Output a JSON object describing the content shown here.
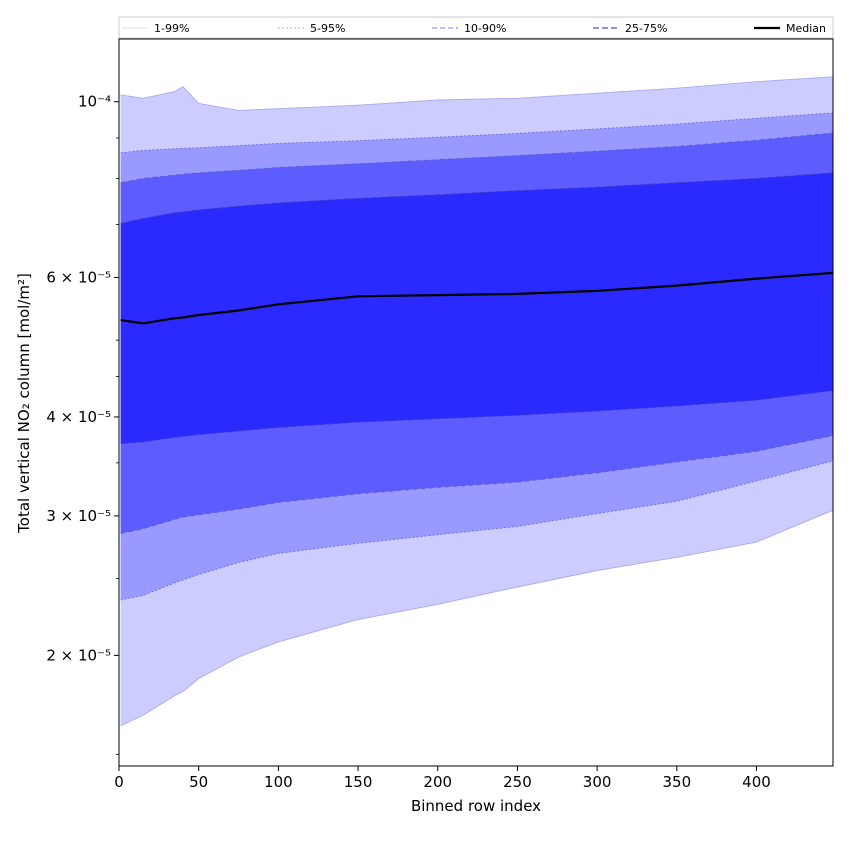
{
  "chart_data": {
    "type": "area",
    "title": "",
    "xlabel": "Binned row index",
    "ylabel": "Total vertical NO₂ column [mol/m²]",
    "yscale": "log",
    "xlim": [
      0,
      448
    ],
    "ylim": [
      1.45e-05,
      0.00012
    ],
    "grid": false,
    "legend_position": "top",
    "x_ticks": [
      {
        "value": 0,
        "label": "0"
      },
      {
        "value": 50,
        "label": "50"
      },
      {
        "value": 100,
        "label": "100"
      },
      {
        "value": 150,
        "label": "150"
      },
      {
        "value": 200,
        "label": "200"
      },
      {
        "value": 250,
        "label": "250"
      },
      {
        "value": 300,
        "label": "300"
      },
      {
        "value": 350,
        "label": "350"
      },
      {
        "value": 400,
        "label": "400"
      }
    ],
    "y_ticks": [
      {
        "value": 2e-05,
        "label": "2 × 10⁻⁵"
      },
      {
        "value": 3e-05,
        "label": "3 × 10⁻⁵"
      },
      {
        "value": 4e-05,
        "label": "4 × 10⁻⁵"
      },
      {
        "value": 6e-05,
        "label": "6 × 10⁻⁵"
      },
      {
        "value": 0.0001,
        "label": "10⁻⁴"
      }
    ],
    "x": [
      1,
      15,
      35,
      40,
      50,
      75,
      100,
      150,
      200,
      250,
      300,
      350,
      400,
      448
    ],
    "series": [
      {
        "name": "p1",
        "band": "1-99%",
        "values": [
          1.63e-05,
          1.68e-05,
          1.78e-05,
          1.8e-05,
          1.87e-05,
          1.99e-05,
          2.08e-05,
          2.22e-05,
          2.32e-05,
          2.44e-05,
          2.56e-05,
          2.66e-05,
          2.78e-05,
          3.05e-05
        ]
      },
      {
        "name": "p5",
        "band": "5-95%",
        "values": [
          2.35e-05,
          2.38e-05,
          2.47e-05,
          2.49e-05,
          2.53e-05,
          2.62e-05,
          2.69e-05,
          2.77e-05,
          2.84e-05,
          2.91e-05,
          3.02e-05,
          3.13e-05,
          3.32e-05,
          3.52e-05
        ]
      },
      {
        "name": "p10",
        "band": "10-90%",
        "values": [
          2.85e-05,
          2.89e-05,
          2.97e-05,
          2.99e-05,
          3.01e-05,
          3.06e-05,
          3.12e-05,
          3.2e-05,
          3.26e-05,
          3.31e-05,
          3.4e-05,
          3.51e-05,
          3.62e-05,
          3.79e-05
        ]
      },
      {
        "name": "p25",
        "band": "25-75%",
        "values": [
          3.7e-05,
          3.72e-05,
          3.77e-05,
          3.78e-05,
          3.8e-05,
          3.84e-05,
          3.88e-05,
          3.94e-05,
          3.98e-05,
          4.02e-05,
          4.07e-05,
          4.13e-05,
          4.2e-05,
          4.32e-05
        ]
      },
      {
        "name": "median",
        "band": "Median",
        "values": [
          5.3e-05,
          5.25e-05,
          5.33e-05,
          5.34e-05,
          5.38e-05,
          5.45e-05,
          5.55e-05,
          5.68e-05,
          5.7e-05,
          5.72e-05,
          5.77e-05,
          5.86e-05,
          5.98e-05,
          6.08e-05
        ]
      },
      {
        "name": "p75",
        "band": "25-75%",
        "values": [
          7.02e-05,
          7.12e-05,
          7.24e-05,
          7.26e-05,
          7.3e-05,
          7.38e-05,
          7.45e-05,
          7.55e-05,
          7.63e-05,
          7.72e-05,
          7.8e-05,
          7.9e-05,
          8e-05,
          8.13e-05
        ]
      },
      {
        "name": "p90",
        "band": "10-90%",
        "values": [
          7.9e-05,
          8e-05,
          8.08e-05,
          8.1e-05,
          8.13e-05,
          8.19e-05,
          8.26e-05,
          8.35e-05,
          8.45e-05,
          8.55e-05,
          8.66e-05,
          8.78e-05,
          8.94e-05,
          9.13e-05
        ]
      },
      {
        "name": "p95",
        "band": "5-95%",
        "values": [
          8.62e-05,
          8.68e-05,
          8.72e-05,
          8.73e-05,
          8.75e-05,
          8.8e-05,
          8.86e-05,
          8.93e-05,
          9.02e-05,
          9.12e-05,
          9.24e-05,
          9.37e-05,
          9.53e-05,
          9.68e-05
        ]
      },
      {
        "name": "p99",
        "band": "1-99%",
        "values": [
          0.000102,
          0.000101,
          0.000103,
          0.0001045,
          9.95e-05,
          9.75e-05,
          9.8e-05,
          9.9e-05,
          0.0001005,
          0.000101,
          0.0001025,
          0.000104,
          0.000106,
          0.0001075
        ]
      }
    ],
    "bands": [
      {
        "label": "1-99%",
        "lower": "p1",
        "upper": "p99",
        "fill": "#ccccff",
        "edge": "#aaaaee",
        "dash": ""
      },
      {
        "label": "5-95%",
        "lower": "p5",
        "upper": "p95",
        "fill": "#9999ff",
        "edge": "#6b6bd6",
        "dash": "2,2"
      },
      {
        "label": "10-90%",
        "lower": "p10",
        "upper": "p90",
        "fill": "#5c5cff",
        "edge": "#5b5bd0",
        "dash": "5,3"
      },
      {
        "label": "25-75%",
        "lower": "p25",
        "upper": "p75",
        "fill": "#2a2aff",
        "edge": "#3b3bc8",
        "dash": "6,3"
      }
    ],
    "legend": [
      "1-99%",
      "5-95%",
      "10-90%",
      "25-75%",
      "Median"
    ],
    "colors": {
      "median": "#000000",
      "axes": "#000000",
      "legend_frame": "#cccccc"
    }
  }
}
